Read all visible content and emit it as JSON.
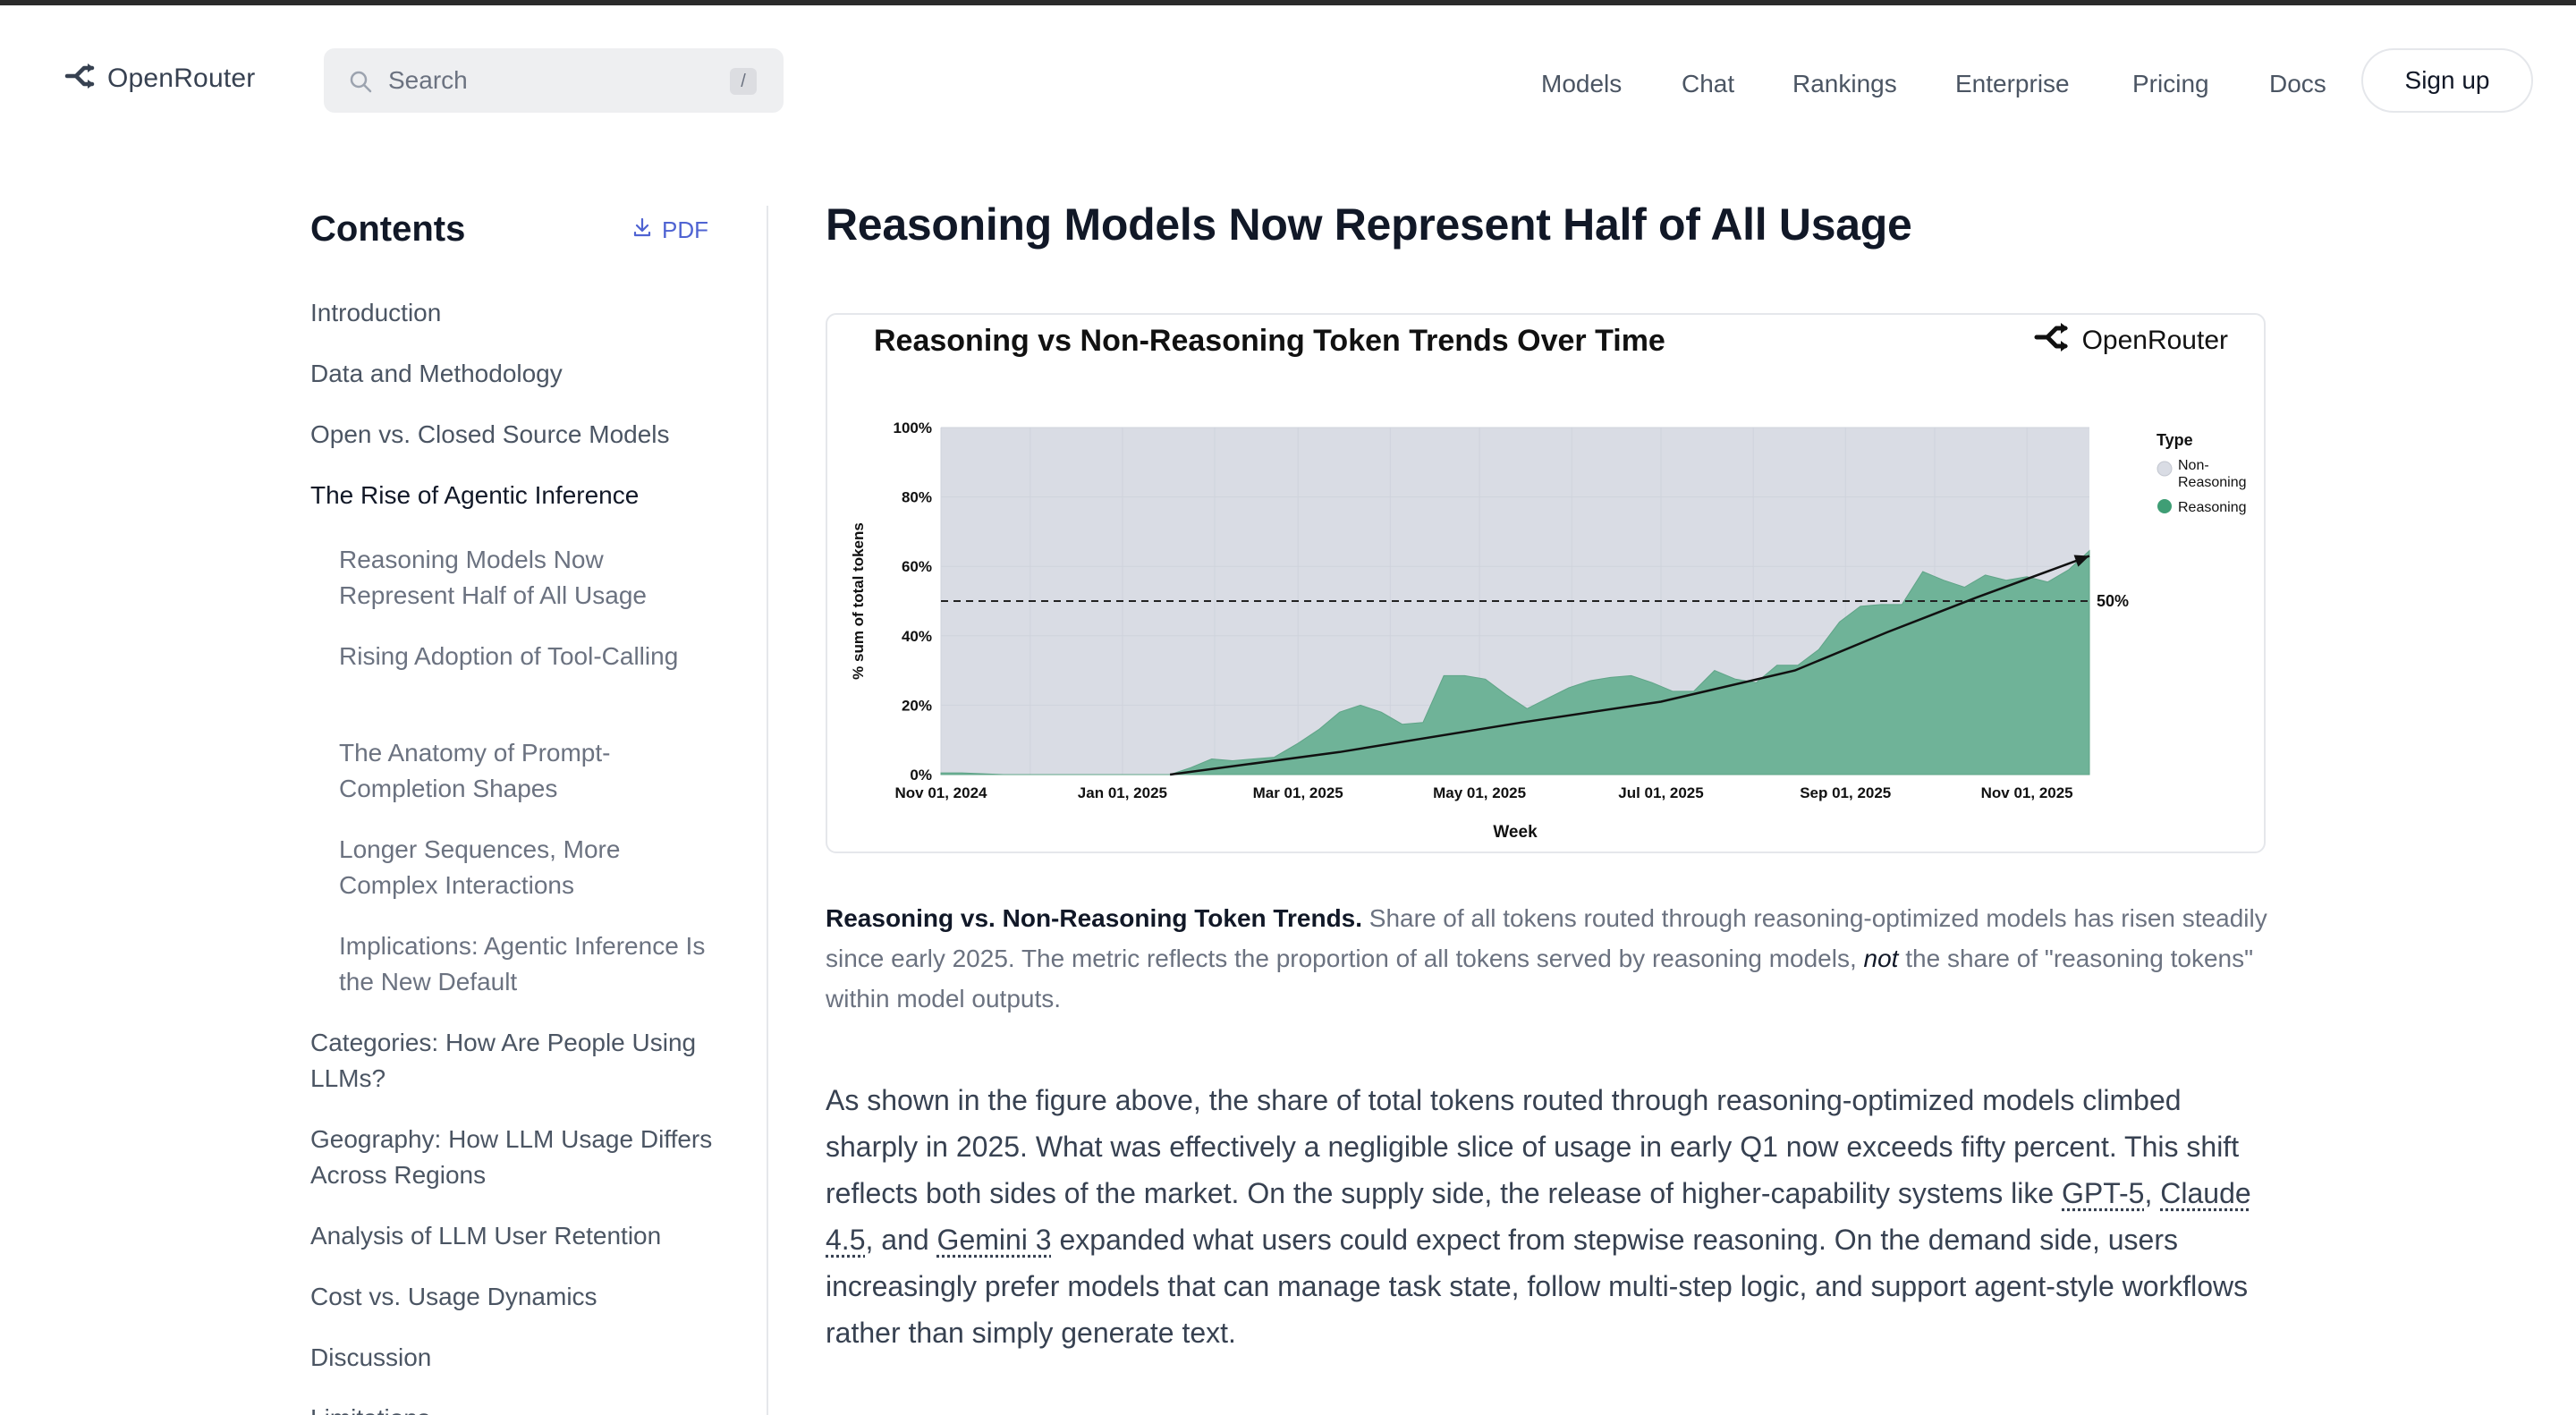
{
  "header": {
    "brand": "OpenRouter",
    "search_placeholder": "Search",
    "search_shortcut": "/",
    "nav": [
      {
        "label": "Models"
      },
      {
        "label": "Chat"
      },
      {
        "label": "Rankings"
      },
      {
        "label": "Enterprise"
      },
      {
        "label": "Pricing"
      },
      {
        "label": "Docs"
      }
    ],
    "signup_label": "Sign up"
  },
  "sidebar": {
    "title": "Contents",
    "pdf_label": "PDF",
    "items": [
      {
        "label": "Introduction"
      },
      {
        "label": "Data and Methodology"
      },
      {
        "label": "Open vs. Closed Source Models"
      },
      {
        "label": "The Rise of Agentic Inference",
        "active": true
      },
      {
        "label": "Reasoning Models Now Represent Half of All Usage",
        "sub": true
      },
      {
        "label": "Rising Adoption of Tool-Calling",
        "sub": true
      },
      {
        "label": "The Anatomy of Prompt-Completion Shapes",
        "sub": true
      },
      {
        "label": "Longer Sequences, More Complex Interactions",
        "sub": true
      },
      {
        "label": "Implications: Agentic Inference Is the New Default",
        "sub": true
      },
      {
        "label": "Categories: How Are People Using LLMs?"
      },
      {
        "label": "Geography: How LLM Usage Differs Across Regions"
      },
      {
        "label": "Analysis of LLM User Retention"
      },
      {
        "label": "Cost vs. Usage Dynamics"
      },
      {
        "label": "Discussion"
      },
      {
        "label": "Limitations"
      }
    ]
  },
  "main": {
    "title": "Reasoning Models Now Represent Half of All Usage",
    "caption_bold": "Reasoning vs. Non-Reasoning Token Trends.",
    "caption_rest_1": " Share of all tokens routed through reasoning-optimized models has risen steadily since early 2025. The metric reflects the proportion of all tokens served by reasoning models, ",
    "caption_em": "not",
    "caption_rest_2": " the share of \"reasoning tokens\" within model outputs.",
    "body_1": "As shown in the figure above, the share of total tokens routed through reasoning-optimized models climbed sharply in 2025. What was effectively a negligible slice of usage in early Q1 now exceeds fifty percent. This shift reflects both sides of the market. On the supply side, the release of higher-capability systems like ",
    "link_1": "GPT-5",
    "sep_1": ", ",
    "link_2": "Claude 4.5",
    "sep_2": ", and ",
    "link_3": "Gemini 3",
    "body_2": " expanded what users could expect from stepwise reasoning. On the demand side, users increasingly prefer models that can manage task state, follow multi-step logic, and support agent-style workflows rather than simply generate text."
  },
  "chart_data": {
    "type": "area",
    "title": "Reasoning vs Non-Reasoning Token Trends Over Time",
    "brand": "OpenRouter",
    "xlabel": "Week",
    "ylabel": "% sum of total tokens",
    "x_tick_labels": [
      "Nov 01, 2024",
      "Jan 01, 2025",
      "Mar 01, 2025",
      "May 01, 2025",
      "Jul 01, 2025",
      "Sep 01, 2025",
      "Nov 01, 2025"
    ],
    "y_tick_labels": [
      "0%",
      "20%",
      "40%",
      "60%",
      "80%",
      "100%"
    ],
    "ylim": [
      0,
      100
    ],
    "legend_title": "Type",
    "legend_position": "right",
    "reference_line": {
      "value": 50,
      "label": "50%"
    },
    "series": [
      {
        "name": "Non-Reasoning",
        "color": "#d9dce4"
      },
      {
        "name": "Reasoning",
        "color": "#6fb398"
      }
    ],
    "reasoning_share": [
      [
        "2024-11-01",
        0.5
      ],
      [
        "2024-11-08",
        0.5
      ],
      [
        "2024-11-22",
        0
      ],
      [
        "2024-12-06",
        0
      ],
      [
        "2024-12-20",
        0
      ],
      [
        "2025-01-03",
        0
      ],
      [
        "2025-01-17",
        0
      ],
      [
        "2025-01-24",
        2
      ],
      [
        "2025-01-31",
        4.5
      ],
      [
        "2025-02-07",
        4
      ],
      [
        "2025-02-14",
        4.5
      ],
      [
        "2025-02-21",
        5
      ],
      [
        "2025-03-01",
        9
      ],
      [
        "2025-03-08",
        13
      ],
      [
        "2025-03-15",
        18
      ],
      [
        "2025-03-22",
        20
      ],
      [
        "2025-03-29",
        18
      ],
      [
        "2025-04-05",
        14.5
      ],
      [
        "2025-04-12",
        15
      ],
      [
        "2025-04-19",
        28.5
      ],
      [
        "2025-04-26",
        28.5
      ],
      [
        "2025-05-03",
        27.5
      ],
      [
        "2025-05-10",
        23
      ],
      [
        "2025-05-17",
        19
      ],
      [
        "2025-05-24",
        22
      ],
      [
        "2025-05-31",
        25
      ],
      [
        "2025-06-07",
        27
      ],
      [
        "2025-06-14",
        28
      ],
      [
        "2025-06-21",
        28.5
      ],
      [
        "2025-06-28",
        26.5
      ],
      [
        "2025-07-05",
        24
      ],
      [
        "2025-07-12",
        24
      ],
      [
        "2025-07-19",
        30
      ],
      [
        "2025-07-26",
        27.5
      ],
      [
        "2025-08-02",
        26.5
      ],
      [
        "2025-08-09",
        31.5
      ],
      [
        "2025-08-16",
        31.5
      ],
      [
        "2025-08-23",
        36
      ],
      [
        "2025-08-30",
        44
      ],
      [
        "2025-09-06",
        48.5
      ],
      [
        "2025-09-13",
        49
      ],
      [
        "2025-09-20",
        49
      ],
      [
        "2025-09-27",
        58.5
      ],
      [
        "2025-10-04",
        56
      ],
      [
        "2025-10-11",
        54
      ],
      [
        "2025-10-18",
        57.5
      ],
      [
        "2025-10-25",
        56
      ],
      [
        "2025-11-01",
        57
      ],
      [
        "2025-11-08",
        55.5
      ],
      [
        "2025-11-15",
        59
      ],
      [
        "2025-11-22",
        64.5
      ]
    ],
    "trend_line": [
      [
        "2025-01-17",
        0
      ],
      [
        "2025-03-15",
        6.5
      ],
      [
        "2025-05-15",
        15
      ],
      [
        "2025-07-01",
        21
      ],
      [
        "2025-08-15",
        30
      ],
      [
        "2025-09-15",
        41
      ],
      [
        "2025-10-15",
        51
      ],
      [
        "2025-11-22",
        63
      ]
    ]
  }
}
